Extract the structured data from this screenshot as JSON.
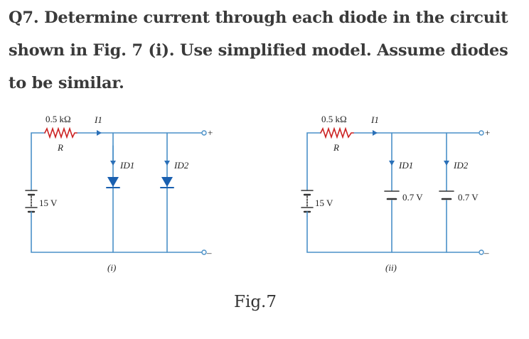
{
  "question": {
    "text": "Q7. Determine current through each diode in the circuit shown in Fig. 7 (i). Use simplified model. Assume diodes to be similar."
  },
  "figure": {
    "caption": "Fig.7",
    "colors": {
      "wire": "#4a90c8",
      "resistor": "#cc2222",
      "diode": "#1a60b0",
      "text": "#222222"
    },
    "circuit_i": {
      "sub_label": "(i)",
      "resistance_label": "0.5 kΩ",
      "resistor_name": "R",
      "current_total": "I1",
      "source_label": "15 V",
      "branch1_current": "ID1",
      "branch2_current": "ID2",
      "terminal_top": "+",
      "terminal_bottom": "–"
    },
    "circuit_ii": {
      "sub_label": "(ii)",
      "resistance_label": "0.5 kΩ",
      "resistor_name": "R",
      "current_total": "I1",
      "source_label": "15 V",
      "branch1_current": "ID1",
      "branch2_current": "ID2",
      "branch1_voltage": "0.7 V",
      "branch2_voltage": "0.7 V",
      "terminal_top": "+",
      "terminal_bottom": "–"
    }
  }
}
